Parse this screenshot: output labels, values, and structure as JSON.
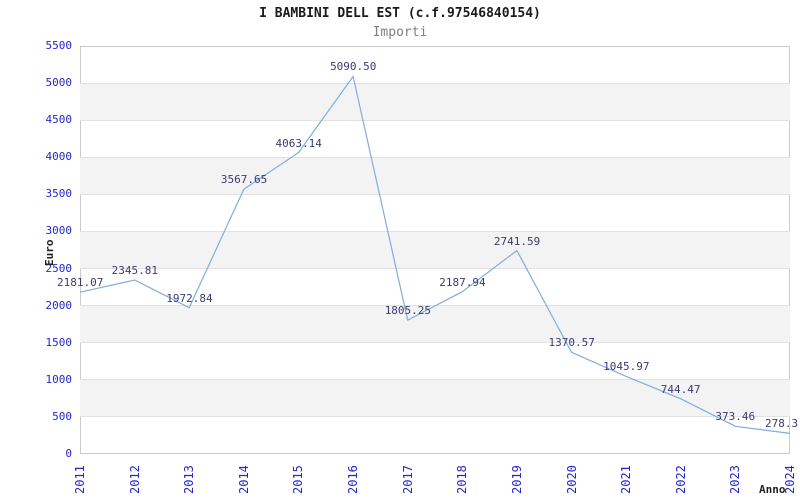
{
  "chart": {
    "title": "I BAMBINI DELL EST (c.f.97546840154)",
    "subtitle": "Importi"
  },
  "chart_data": {
    "type": "line",
    "title": "I BAMBINI DELL EST (c.f.97546840154)",
    "subtitle": "Importi",
    "xlabel": "Anno",
    "ylabel": "Euro",
    "categories": [
      "2011",
      "2012",
      "2013",
      "2014",
      "2015",
      "2016",
      "2017",
      "2018",
      "2019",
      "2020",
      "2021",
      "2022",
      "2023",
      "2024"
    ],
    "values": [
      2181.07,
      2345.81,
      1972.84,
      3567.65,
      4063.14,
      5090.5,
      1805.25,
      2187.94,
      2741.59,
      1370.57,
      1045.97,
      744.47,
      373.46,
      278.3
    ],
    "point_labels": [
      "2181.07",
      "2345.81",
      "1972.84",
      "3567.65",
      "4063.14",
      "5090.50",
      "1805.25",
      "2187.94",
      "2741.59",
      "1370.57",
      "1045.97",
      "744.47",
      "373.46",
      "278.3"
    ],
    "ylim": [
      0,
      5500
    ],
    "ytick_step": 500,
    "grid": "horizontal-bands-alternating",
    "legend": "none",
    "colors": {
      "line": "#7fadde",
      "tick_label": "#2626c9",
      "point_label": "#3b3b73",
      "band": "#f3f3f3",
      "gridline": "#e2e2e2",
      "plot_border": "#cbcbcb",
      "title": "#1a1a1a",
      "subtitle": "#808080",
      "axis_title": "#222222",
      "background": "#ffffff"
    }
  }
}
